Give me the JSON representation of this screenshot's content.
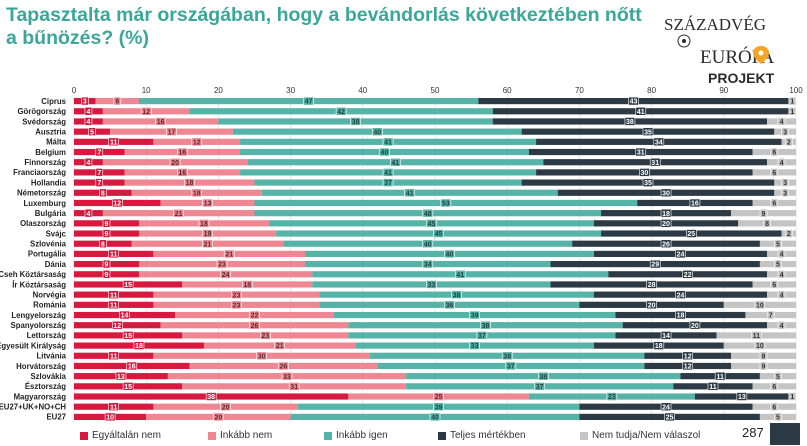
{
  "title": "Tapasztalta már országában, hogy a bevándorlás következtében nőtt a bűnözés? (%)",
  "logo": {
    "line1": "SZÁZADVÉG",
    "line2": "EURÓPA",
    "line3": "PROJEKT"
  },
  "page_number": "287",
  "colors": {
    "egyaltalan": "#d7193f",
    "inkabb_nem": "#ef8793",
    "inkabb_igen": "#55b4a7",
    "teljes": "#2b3a44",
    "nem_tudja": "#c4c4c4"
  },
  "chart_data": {
    "type": "bar",
    "orientation": "horizontal",
    "stacked": true,
    "title": "Tapasztalta már országában, hogy a bevándorlás következtében nőtt a bűnözés? (%)",
    "xlim": [
      0,
      100
    ],
    "x_ticks": [
      "0",
      "10",
      "20",
      "30",
      "40",
      "50",
      "60",
      "70",
      "80",
      "90",
      "100"
    ],
    "legend_position": "bottom",
    "categories": [
      "Ciprus",
      "Görögország",
      "Svédország",
      "Ausztria",
      "Málta",
      "Belgium",
      "Finnország",
      "Franciaország",
      "Hollandia",
      "Németország",
      "Luxemburg",
      "Bulgária",
      "Olaszország",
      "Svájc",
      "Szlovénia",
      "Portugália",
      "Dánia",
      "Cseh Köztársaság",
      "Ír Köztársaság",
      "Norvégia",
      "Románia",
      "Lengyelország",
      "Spanyolország",
      "Lettország",
      "Egyesült Királyság",
      "Litvánia",
      "Horvátország",
      "Szlovákia",
      "Észtország",
      "Magyarország",
      "EU27+UK+NO+CH",
      "EU27"
    ],
    "series": [
      {
        "name": "Egyáltalán nem",
        "values": [
          3,
          4,
          4,
          5,
          11,
          7,
          4,
          7,
          7,
          8,
          12,
          4,
          9,
          9,
          8,
          11,
          9,
          9,
          15,
          11,
          11,
          14,
          12,
          15,
          18,
          11,
          16,
          13,
          15,
          38,
          11,
          10
        ]
      },
      {
        "name": "Inkább nem",
        "values": [
          6,
          12,
          16,
          17,
          12,
          16,
          20,
          16,
          18,
          18,
          13,
          21,
          18,
          19,
          21,
          21,
          23,
          24,
          18,
          23,
          23,
          22,
          26,
          23,
          21,
          30,
          26,
          33,
          31,
          25,
          20,
          20
        ]
      },
      {
        "name": "Inkább igen",
        "values": [
          47,
          42,
          38,
          40,
          41,
          40,
          41,
          41,
          37,
          41,
          53,
          48,
          45,
          45,
          40,
          40,
          34,
          41,
          33,
          38,
          36,
          39,
          38,
          37,
          33,
          38,
          37,
          38,
          37,
          23,
          39,
          40
        ]
      },
      {
        "name": "Teljes mértékben",
        "values": [
          43,
          41,
          38,
          35,
          34,
          31,
          31,
          30,
          35,
          30,
          16,
          18,
          20,
          25,
          26,
          24,
          29,
          22,
          28,
          24,
          20,
          18,
          20,
          14,
          18,
          12,
          12,
          11,
          11,
          13,
          24,
          25
        ]
      },
      {
        "name": "Nem tudja/Nem válaszol",
        "values": [
          1,
          1,
          4,
          3,
          2,
          6,
          4,
          6,
          3,
          3,
          6,
          9,
          8,
          2,
          5,
          4,
          5,
          4,
          6,
          4,
          10,
          7,
          4,
          11,
          10,
          9,
          9,
          5,
          6,
          1,
          6,
          5
        ]
      }
    ]
  }
}
